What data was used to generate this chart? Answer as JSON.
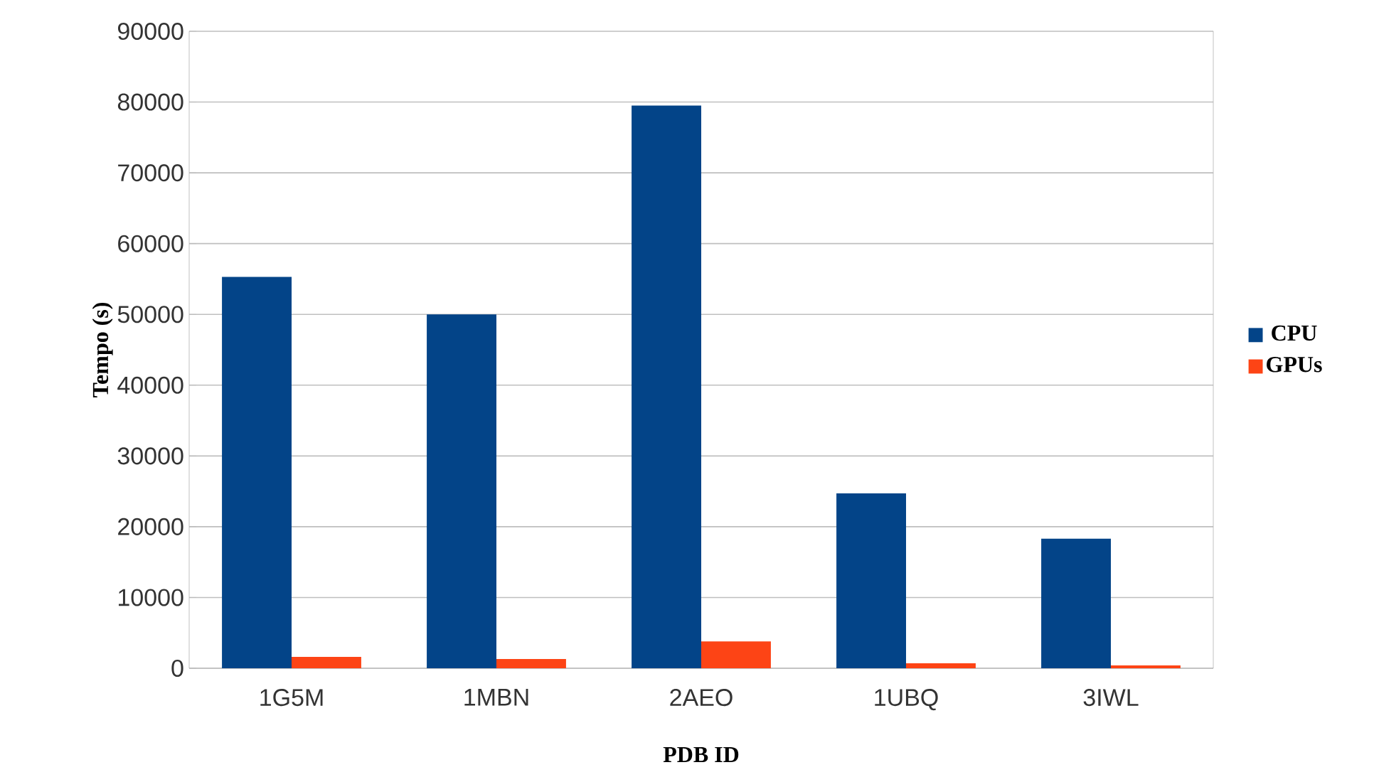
{
  "chart_data": {
    "type": "bar",
    "xlabel": "PDB ID",
    "ylabel": "Tempo (s)",
    "categories": [
      "1G5M",
      "1MBN",
      "2AEO",
      "1UBQ",
      "3IWL"
    ],
    "series": [
      {
        "name": "CPU",
        "color": "#034488",
        "values": [
          55300,
          50000,
          79500,
          24700,
          18300
        ]
      },
      {
        "name": "GPUs",
        "color": "#fd4415",
        "values": [
          1600,
          1300,
          3800,
          700,
          400
        ]
      }
    ],
    "ylim": [
      0,
      90000
    ],
    "yticks": [
      0,
      10000,
      20000,
      30000,
      40000,
      50000,
      60000,
      70000,
      80000,
      90000
    ],
    "grid": "y",
    "legend": "right"
  }
}
